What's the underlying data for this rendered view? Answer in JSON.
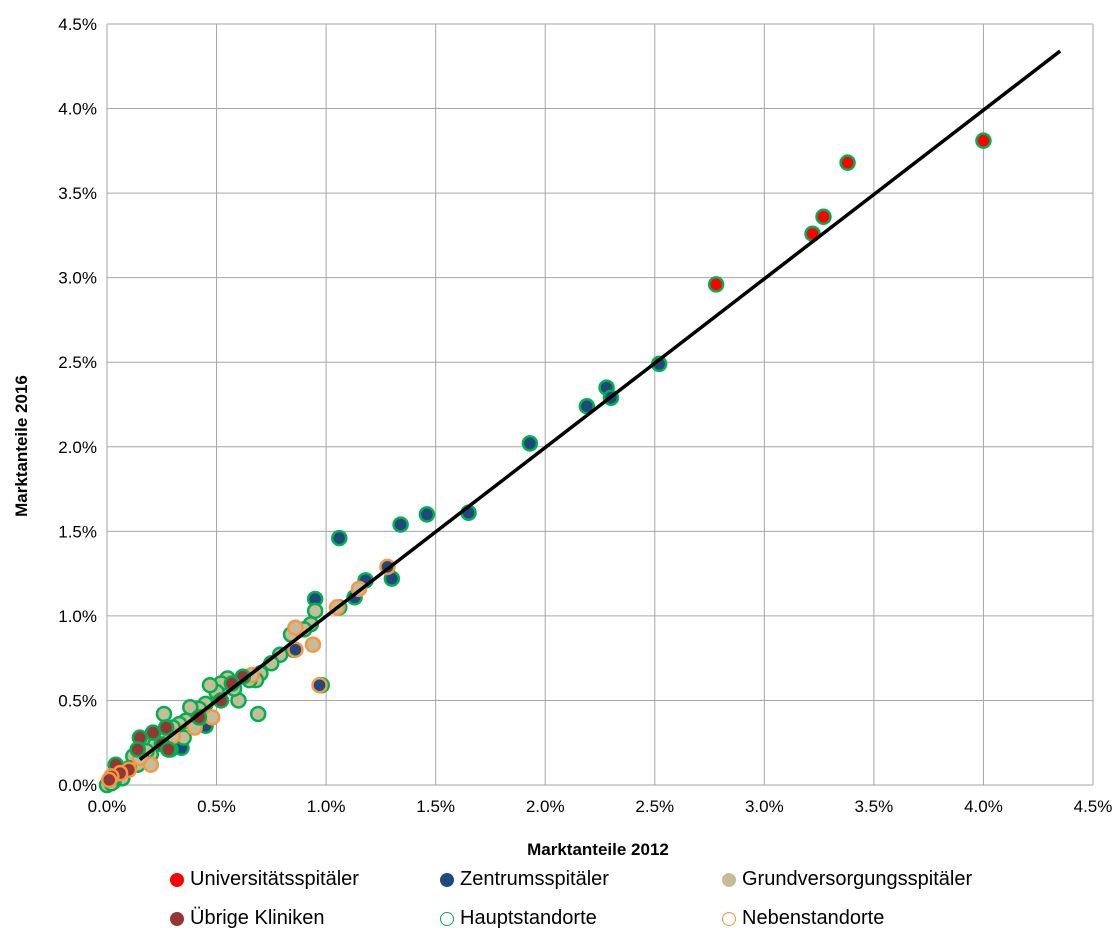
{
  "chart_data": {
    "type": "scatter",
    "xlabel": "Marktanteile 2012",
    "ylabel": "Marktanteile 2016",
    "xlim": [
      0,
      4.5
    ],
    "ylim": [
      0,
      4.5
    ],
    "x_ticks": [
      "0.0%",
      "0.5%",
      "1.0%",
      "1.5%",
      "2.0%",
      "2.5%",
      "3.0%",
      "3.5%",
      "4.0%",
      "4.5%"
    ],
    "y_ticks": [
      "0.0%",
      "0.5%",
      "1.0%",
      "1.5%",
      "2.0%",
      "2.5%",
      "3.0%",
      "3.5%",
      "4.0%",
      "4.5%"
    ],
    "grid": true,
    "trendline": {
      "x": [
        0.15,
        4.35
      ],
      "y": [
        0.15,
        4.34
      ]
    },
    "legend": [
      {
        "name": "Universitätsspitäler",
        "marker": "filled",
        "color": "#ff0000"
      },
      {
        "name": "Zentrumsspitäler",
        "marker": "filled",
        "color": "#1f497d"
      },
      {
        "name": "Grundversorgungsspitäler",
        "marker": "filled",
        "color": "#c4bd97"
      },
      {
        "name": "Übrige Kliniken",
        "marker": "filled",
        "color": "#943634"
      },
      {
        "name": "Hauptstandorte",
        "marker": "outline",
        "color": "#00b050"
      },
      {
        "name": "Nebenstandorte",
        "marker": "outline",
        "color": "#f79646"
      }
    ],
    "series": [
      {
        "name": "Universitätsspitäler",
        "fill": "#ff0000",
        "edge": "#00b050",
        "points": [
          [
            4.0,
            3.81
          ],
          [
            3.38,
            3.68
          ],
          [
            3.27,
            3.36
          ],
          [
            3.22,
            3.26
          ],
          [
            2.78,
            2.96
          ]
        ]
      },
      {
        "name": "Zentrumsspitäler",
        "fill": "#1f497d",
        "edge": "#00b050",
        "points": [
          [
            2.52,
            2.49
          ],
          [
            2.28,
            2.35
          ],
          [
            2.3,
            2.29
          ],
          [
            2.19,
            2.24
          ],
          [
            1.93,
            2.02
          ],
          [
            1.65,
            1.61
          ],
          [
            1.46,
            1.6
          ],
          [
            1.34,
            1.54
          ],
          [
            1.06,
            1.46
          ],
          [
            1.3,
            1.22
          ],
          [
            1.18,
            1.21
          ],
          [
            1.13,
            1.11
          ],
          [
            0.95,
            1.1
          ],
          [
            1.06,
            1.05
          ],
          [
            0.85,
            0.8
          ],
          [
            0.98,
            0.59
          ],
          [
            0.34,
            0.22
          ],
          [
            0.45,
            0.35
          ]
        ]
      },
      {
        "name": "Zentrumsspitäler",
        "fill": "#1f497d",
        "edge": "#f79646",
        "points": [
          [
            1.28,
            1.29
          ],
          [
            0.86,
            0.8
          ],
          [
            0.97,
            0.59
          ]
        ]
      },
      {
        "name": "Grundversorgungsspitäler",
        "fill": "#c4bd97",
        "edge": "#00b050",
        "points": [
          [
            0.95,
            1.03
          ],
          [
            0.93,
            0.95
          ],
          [
            0.9,
            0.92
          ],
          [
            0.84,
            0.89
          ],
          [
            0.79,
            0.77
          ],
          [
            0.75,
            0.72
          ],
          [
            0.7,
            0.66
          ],
          [
            0.68,
            0.62
          ],
          [
            0.69,
            0.42
          ],
          [
            0.65,
            0.62
          ],
          [
            0.6,
            0.5
          ],
          [
            0.58,
            0.57
          ],
          [
            0.55,
            0.63
          ],
          [
            0.52,
            0.6
          ],
          [
            0.5,
            0.55
          ],
          [
            0.47,
            0.59
          ],
          [
            0.45,
            0.48
          ],
          [
            0.42,
            0.45
          ],
          [
            0.38,
            0.46
          ],
          [
            0.36,
            0.38
          ],
          [
            0.33,
            0.36
          ],
          [
            0.3,
            0.34
          ],
          [
            0.28,
            0.3
          ],
          [
            0.26,
            0.42
          ],
          [
            0.24,
            0.28
          ],
          [
            0.22,
            0.24
          ],
          [
            0.2,
            0.18
          ],
          [
            0.18,
            0.2
          ],
          [
            0.16,
            0.15
          ],
          [
            0.14,
            0.12
          ],
          [
            0.12,
            0.17
          ],
          [
            0.1,
            0.1
          ],
          [
            0.07,
            0.04
          ],
          [
            0.03,
            0.02
          ],
          [
            0.0,
            0.0
          ],
          [
            0.02,
            0.01
          ],
          [
            0.29,
            0.21
          ],
          [
            0.35,
            0.28
          ],
          [
            0.43,
            0.4
          ]
        ]
      },
      {
        "name": "Grundversorgungsspitäler",
        "fill": "#c4bd97",
        "edge": "#f79646",
        "points": [
          [
            1.15,
            1.16
          ],
          [
            1.05,
            1.05
          ],
          [
            0.94,
            0.83
          ],
          [
            0.86,
            0.93
          ],
          [
            0.66,
            0.65
          ],
          [
            0.48,
            0.4
          ],
          [
            0.4,
            0.34
          ],
          [
            0.3,
            0.29
          ],
          [
            0.2,
            0.12
          ],
          [
            0.15,
            0.16
          ]
        ]
      },
      {
        "name": "Übrige Kliniken",
        "fill": "#943634",
        "edge": "#00b050",
        "points": [
          [
            0.62,
            0.64
          ],
          [
            0.57,
            0.6
          ],
          [
            0.52,
            0.5
          ],
          [
            0.42,
            0.4
          ],
          [
            0.27,
            0.34
          ],
          [
            0.25,
            0.24
          ],
          [
            0.21,
            0.31
          ],
          [
            0.15,
            0.28
          ],
          [
            0.14,
            0.21
          ],
          [
            0.28,
            0.21
          ],
          [
            0.04,
            0.12
          ],
          [
            0.02,
            0.04
          ]
        ]
      },
      {
        "name": "Übrige Kliniken",
        "fill": "#943634",
        "edge": "#f79646",
        "points": [
          [
            0.1,
            0.09
          ],
          [
            0.06,
            0.07
          ],
          [
            0.02,
            0.05
          ],
          [
            0.01,
            0.03
          ]
        ]
      }
    ]
  }
}
